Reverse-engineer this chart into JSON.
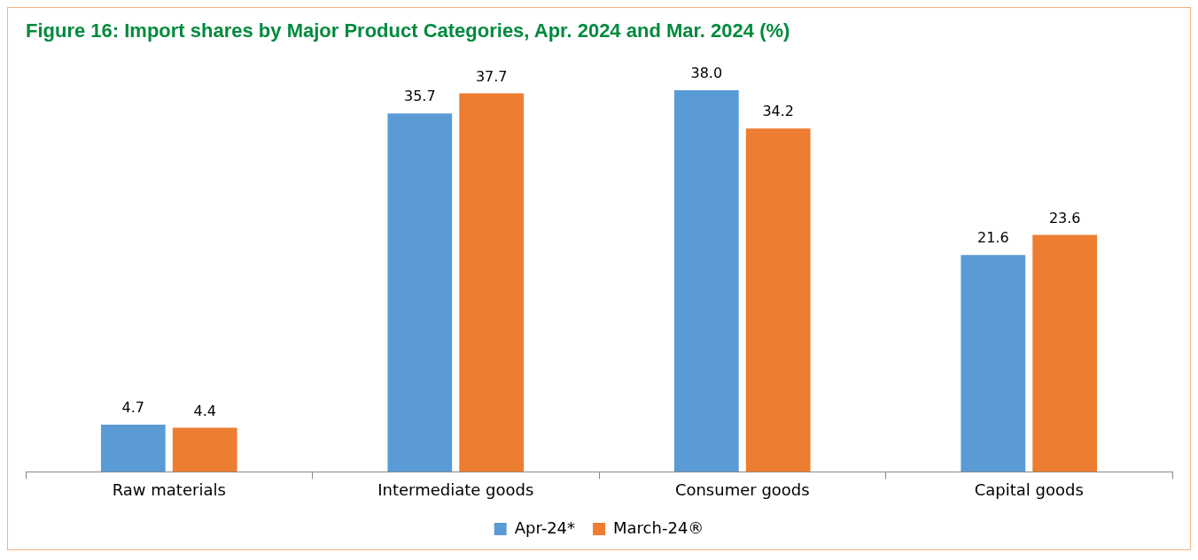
{
  "chart_data": {
    "type": "bar",
    "title": "Figure 16: Import shares by Major Product Categories, Apr. 2024 and Mar. 2024 (%)",
    "categories": [
      "Raw materials",
      "Intermediate goods",
      "Consumer goods",
      "Capital goods"
    ],
    "series": [
      {
        "name": "Apr-24*",
        "color": "#5b9bd5",
        "values": [
          4.7,
          35.7,
          38.0,
          21.6
        ],
        "value_labels": [
          "4.7",
          "35.7",
          "38.0",
          "21.6"
        ]
      },
      {
        "name": "March-24®",
        "color": "#ed7d31",
        "values": [
          4.4,
          37.7,
          34.2,
          23.6
        ],
        "value_labels": [
          "4.4",
          "37.7",
          "34.2",
          "23.6"
        ]
      }
    ],
    "legend": "bottom",
    "grid": false
  }
}
